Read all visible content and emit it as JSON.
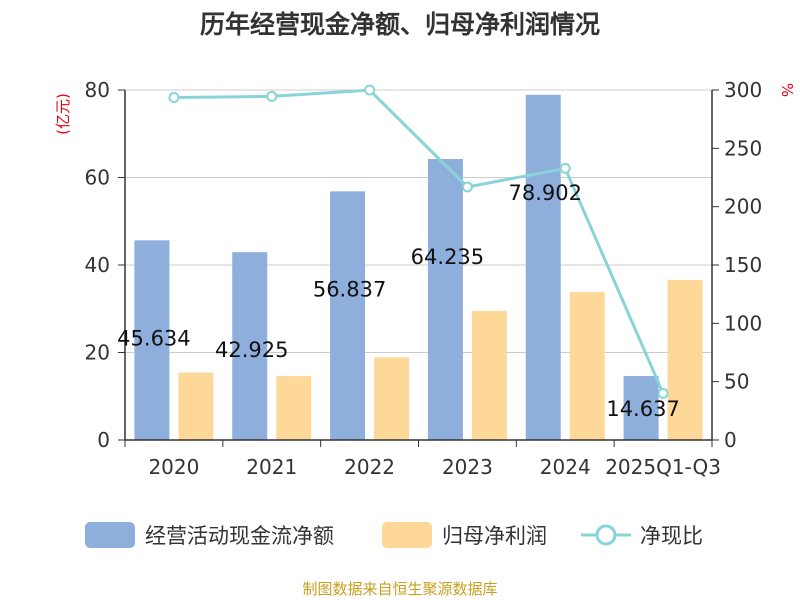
{
  "chart_data": {
    "type": "bar",
    "title": "历年经营现金净额、归母净利润情况",
    "categories": [
      "2020",
      "2021",
      "2022",
      "2023",
      "2024",
      "2025Q1-Q3"
    ],
    "series": [
      {
        "name": "经营活动现金流净额",
        "type": "bar",
        "axis": "left",
        "color": "#8eaedb",
        "values": [
          45.634,
          42.925,
          56.837,
          64.235,
          78.902,
          14.637
        ],
        "labels": [
          "45.634",
          "42.925",
          "56.837",
          "64.235",
          "78.902",
          "14.637"
        ]
      },
      {
        "name": "归母净利润",
        "type": "bar",
        "axis": "left",
        "color": "#fed899",
        "values": [
          15.4,
          14.6,
          18.9,
          29.5,
          33.8,
          36.6
        ]
      },
      {
        "name": "净现比",
        "type": "line",
        "axis": "right",
        "color": "#88d4d8",
        "values": [
          293.6,
          294.5,
          299.9,
          216.9,
          232.8,
          40.0
        ]
      }
    ],
    "y_left": {
      "label": "(亿元)",
      "ylim": [
        0,
        80
      ],
      "ticks": [
        0,
        20,
        40,
        60,
        80
      ]
    },
    "y_right": {
      "label": "%",
      "ylim": [
        0,
        300
      ],
      "ticks": [
        0,
        50,
        100,
        150,
        200,
        250,
        300
      ]
    },
    "grid": true,
    "legend_position": "bottom"
  },
  "source": "制图数据来自恒生聚源数据库"
}
